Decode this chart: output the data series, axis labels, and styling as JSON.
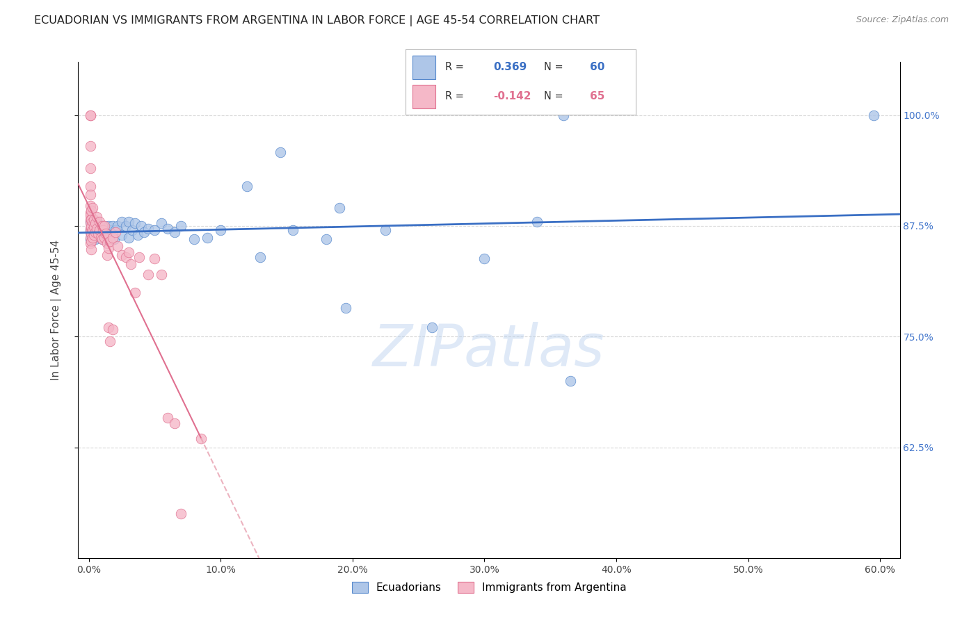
{
  "title": "ECUADORIAN VS IMMIGRANTS FROM ARGENTINA IN LABOR FORCE | AGE 45-54 CORRELATION CHART",
  "source": "Source: ZipAtlas.com",
  "ylabel": "In Labor Force | Age 45-54",
  "x_ticks": [
    0.0,
    0.1,
    0.2,
    0.3,
    0.4,
    0.5,
    0.6
  ],
  "x_tick_labels": [
    "0.0%",
    "10.0%",
    "20.0%",
    "30.0%",
    "40.0%",
    "50.0%",
    "60.0%"
  ],
  "y_ticks": [
    0.625,
    0.75,
    0.875,
    1.0
  ],
  "y_tick_labels": [
    "62.5%",
    "75.0%",
    "87.5%",
    "100.0%"
  ],
  "xlim": [
    -0.008,
    0.615
  ],
  "ylim": [
    0.5,
    1.06
  ],
  "legend_label1": "Ecuadorians",
  "legend_label2": "Immigrants from Argentina",
  "R1": 0.369,
  "N1": 60,
  "R2": -0.142,
  "N2": 65,
  "blue_color": "#aec6e8",
  "pink_color": "#f5b8c8",
  "blue_edge_color": "#5588cc",
  "pink_edge_color": "#e07090",
  "blue_line_color": "#3a6fc4",
  "pink_line_color": "#e07090",
  "pink_dash_color": "#e8a0b0",
  "tick_color": "#4477cc",
  "blue_scatter": [
    [
      0.001,
      0.88
    ],
    [
      0.001,
      0.87
    ],
    [
      0.001,
      0.86
    ],
    [
      0.002,
      0.88
    ],
    [
      0.002,
      0.865
    ],
    [
      0.003,
      0.875
    ],
    [
      0.003,
      0.86
    ],
    [
      0.004,
      0.87
    ],
    [
      0.005,
      0.875
    ],
    [
      0.005,
      0.86
    ],
    [
      0.006,
      0.88
    ],
    [
      0.007,
      0.875
    ],
    [
      0.008,
      0.87
    ],
    [
      0.009,
      0.865
    ],
    [
      0.01,
      0.875
    ],
    [
      0.01,
      0.86
    ],
    [
      0.011,
      0.87
    ],
    [
      0.012,
      0.875
    ],
    [
      0.013,
      0.865
    ],
    [
      0.014,
      0.87
    ],
    [
      0.015,
      0.875
    ],
    [
      0.016,
      0.865
    ],
    [
      0.017,
      0.87
    ],
    [
      0.018,
      0.875
    ],
    [
      0.019,
      0.86
    ],
    [
      0.02,
      0.87
    ],
    [
      0.022,
      0.875
    ],
    [
      0.025,
      0.88
    ],
    [
      0.025,
      0.865
    ],
    [
      0.028,
      0.875
    ],
    [
      0.03,
      0.88
    ],
    [
      0.03,
      0.862
    ],
    [
      0.033,
      0.87
    ],
    [
      0.035,
      0.878
    ],
    [
      0.037,
      0.865
    ],
    [
      0.04,
      0.875
    ],
    [
      0.042,
      0.868
    ],
    [
      0.045,
      0.872
    ],
    [
      0.05,
      0.87
    ],
    [
      0.055,
      0.878
    ],
    [
      0.06,
      0.872
    ],
    [
      0.065,
      0.868
    ],
    [
      0.07,
      0.875
    ],
    [
      0.08,
      0.86
    ],
    [
      0.09,
      0.862
    ],
    [
      0.1,
      0.87
    ],
    [
      0.12,
      0.92
    ],
    [
      0.13,
      0.84
    ],
    [
      0.145,
      0.958
    ],
    [
      0.155,
      0.87
    ],
    [
      0.18,
      0.86
    ],
    [
      0.19,
      0.895
    ],
    [
      0.195,
      0.782
    ],
    [
      0.225,
      0.87
    ],
    [
      0.26,
      0.76
    ],
    [
      0.3,
      0.838
    ],
    [
      0.34,
      0.88
    ],
    [
      0.36,
      1.0
    ],
    [
      0.365,
      0.7
    ],
    [
      0.595,
      1.0
    ]
  ],
  "pink_scatter": [
    [
      0.001,
      1.0
    ],
    [
      0.001,
      1.0
    ],
    [
      0.001,
      0.965
    ],
    [
      0.001,
      0.94
    ],
    [
      0.001,
      0.92
    ],
    [
      0.001,
      0.91
    ],
    [
      0.001,
      0.898
    ],
    [
      0.001,
      0.89
    ],
    [
      0.001,
      0.887
    ],
    [
      0.001,
      0.882
    ],
    [
      0.001,
      0.878
    ],
    [
      0.001,
      0.872
    ],
    [
      0.001,
      0.868
    ],
    [
      0.001,
      0.862
    ],
    [
      0.001,
      0.855
    ],
    [
      0.002,
      0.892
    ],
    [
      0.002,
      0.882
    ],
    [
      0.002,
      0.874
    ],
    [
      0.002,
      0.866
    ],
    [
      0.002,
      0.858
    ],
    [
      0.002,
      0.848
    ],
    [
      0.003,
      0.895
    ],
    [
      0.003,
      0.88
    ],
    [
      0.003,
      0.87
    ],
    [
      0.003,
      0.862
    ],
    [
      0.004,
      0.882
    ],
    [
      0.004,
      0.874
    ],
    [
      0.004,
      0.865
    ],
    [
      0.005,
      0.878
    ],
    [
      0.005,
      0.868
    ],
    [
      0.006,
      0.885
    ],
    [
      0.006,
      0.872
    ],
    [
      0.007,
      0.866
    ],
    [
      0.008,
      0.88
    ],
    [
      0.008,
      0.87
    ],
    [
      0.009,
      0.862
    ],
    [
      0.01,
      0.875
    ],
    [
      0.01,
      0.86
    ],
    [
      0.011,
      0.87
    ],
    [
      0.012,
      0.875
    ],
    [
      0.012,
      0.862
    ],
    [
      0.013,
      0.866
    ],
    [
      0.014,
      0.855
    ],
    [
      0.014,
      0.842
    ],
    [
      0.015,
      0.85
    ],
    [
      0.015,
      0.76
    ],
    [
      0.016,
      0.858
    ],
    [
      0.016,
      0.745
    ],
    [
      0.018,
      0.862
    ],
    [
      0.018,
      0.758
    ],
    [
      0.02,
      0.868
    ],
    [
      0.022,
      0.852
    ],
    [
      0.025,
      0.842
    ],
    [
      0.028,
      0.84
    ],
    [
      0.03,
      0.845
    ],
    [
      0.032,
      0.832
    ],
    [
      0.035,
      0.8
    ],
    [
      0.038,
      0.84
    ],
    [
      0.045,
      0.82
    ],
    [
      0.05,
      0.838
    ],
    [
      0.055,
      0.82
    ],
    [
      0.06,
      0.658
    ],
    [
      0.065,
      0.652
    ],
    [
      0.07,
      0.55
    ],
    [
      0.085,
      0.635
    ]
  ],
  "watermark": "ZIPatlas",
  "background_color": "#ffffff",
  "grid_color": "#cccccc"
}
